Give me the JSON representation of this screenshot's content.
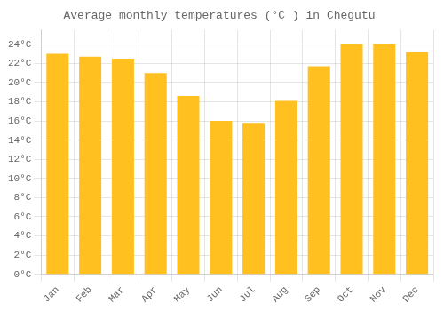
{
  "chart_data": {
    "type": "bar",
    "title": "Average monthly temperatures (°C ) in Chegutu",
    "categories": [
      "Jan",
      "Feb",
      "Mar",
      "Apr",
      "May",
      "Jun",
      "Jul",
      "Aug",
      "Sep",
      "Oct",
      "Nov",
      "Dec"
    ],
    "values": [
      23.0,
      22.7,
      22.5,
      21.0,
      18.6,
      16.0,
      15.8,
      18.1,
      21.7,
      24.0,
      24.0,
      23.2
    ],
    "color": "#FFC020",
    "ylim": [
      0,
      25.5
    ],
    "yticks": [
      {
        "value": 0,
        "label": "0°C"
      },
      {
        "value": 2,
        "label": "2°C"
      },
      {
        "value": 4,
        "label": "4°C"
      },
      {
        "value": 6,
        "label": "6°C"
      },
      {
        "value": 8,
        "label": "8°C"
      },
      {
        "value": 10,
        "label": "10°C"
      },
      {
        "value": 12,
        "label": "12°C"
      },
      {
        "value": 14,
        "label": "14°C"
      },
      {
        "value": 16,
        "label": "16°C"
      },
      {
        "value": 18,
        "label": "18°C"
      },
      {
        "value": 20,
        "label": "20°C"
      },
      {
        "value": 22,
        "label": "22°C"
      },
      {
        "value": 24,
        "label": "24°C"
      }
    ],
    "grid": true
  }
}
